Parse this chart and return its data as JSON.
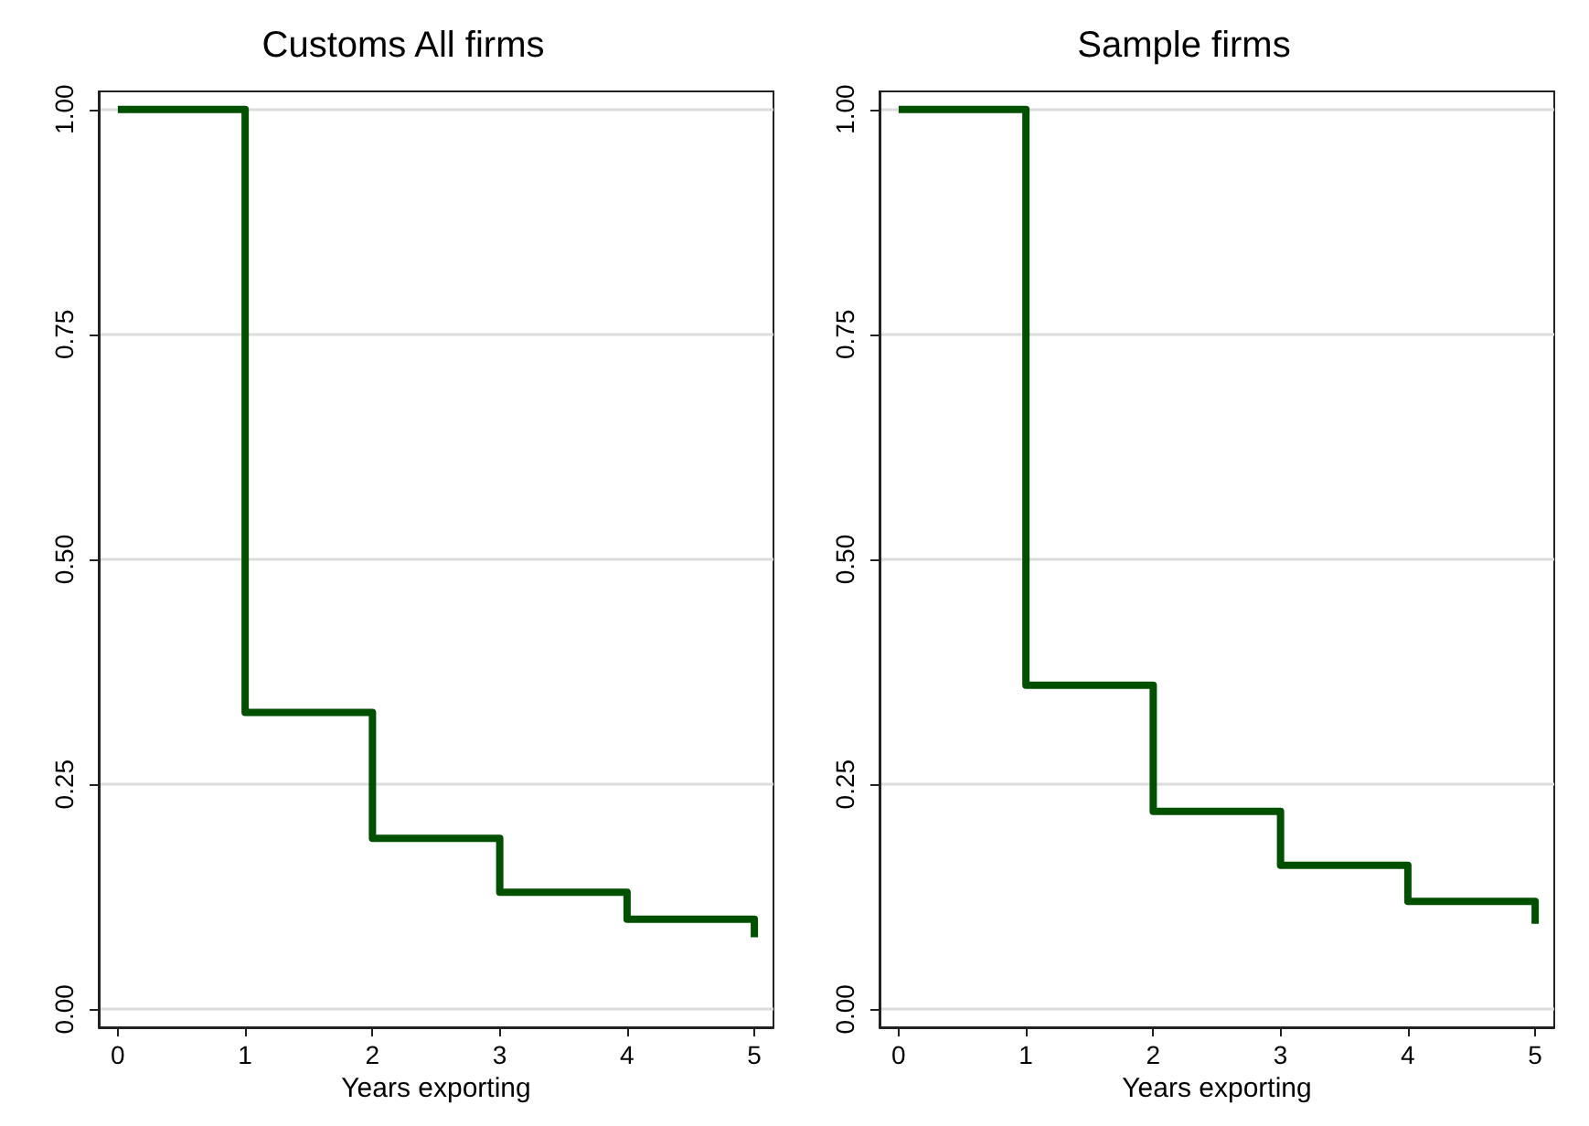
{
  "chart_data": [
    {
      "type": "step",
      "title": "Customs All firms",
      "xlabel": "Years exporting",
      "x": [
        0,
        1,
        2,
        3,
        4,
        5
      ],
      "series": [
        {
          "color": "#005000",
          "values": [
            1.0,
            0.33,
            0.19,
            0.13,
            0.1,
            0.08
          ]
        }
      ],
      "xlim": [
        -0.15,
        5.15
      ],
      "xticks": [
        0,
        1,
        2,
        3,
        4,
        5
      ],
      "ylim": [
        -0.02,
        1.02
      ],
      "yticks": [
        {
          "value": 0,
          "label": "0.00"
        },
        {
          "value": 0.25,
          "label": "0.25"
        },
        {
          "value": 0.5,
          "label": "0.50"
        },
        {
          "value": 0.75,
          "label": "0.75"
        },
        {
          "value": 1,
          "label": "1.00"
        }
      ],
      "grid": "y",
      "marker": "none",
      "line_style": "solid"
    },
    {
      "type": "step",
      "title": "Sample firms",
      "xlabel": "Years exporting",
      "x": [
        0,
        1,
        2,
        3,
        4,
        5
      ],
      "series": [
        {
          "color": "#005000",
          "values": [
            1.0,
            0.36,
            0.22,
            0.16,
            0.12,
            0.095
          ]
        }
      ],
      "xlim": [
        -0.15,
        5.15
      ],
      "xticks": [
        0,
        1,
        2,
        3,
        4,
        5
      ],
      "ylim": [
        -0.02,
        1.02
      ],
      "yticks": [
        {
          "value": 0,
          "label": "0.00"
        },
        {
          "value": 0.25,
          "label": "0.25"
        },
        {
          "value": 0.5,
          "label": "0.50"
        },
        {
          "value": 0.75,
          "label": "0.75"
        },
        {
          "value": 1,
          "label": "1.00"
        }
      ],
      "grid": "y",
      "marker": "none",
      "line_style": "solid"
    }
  ]
}
